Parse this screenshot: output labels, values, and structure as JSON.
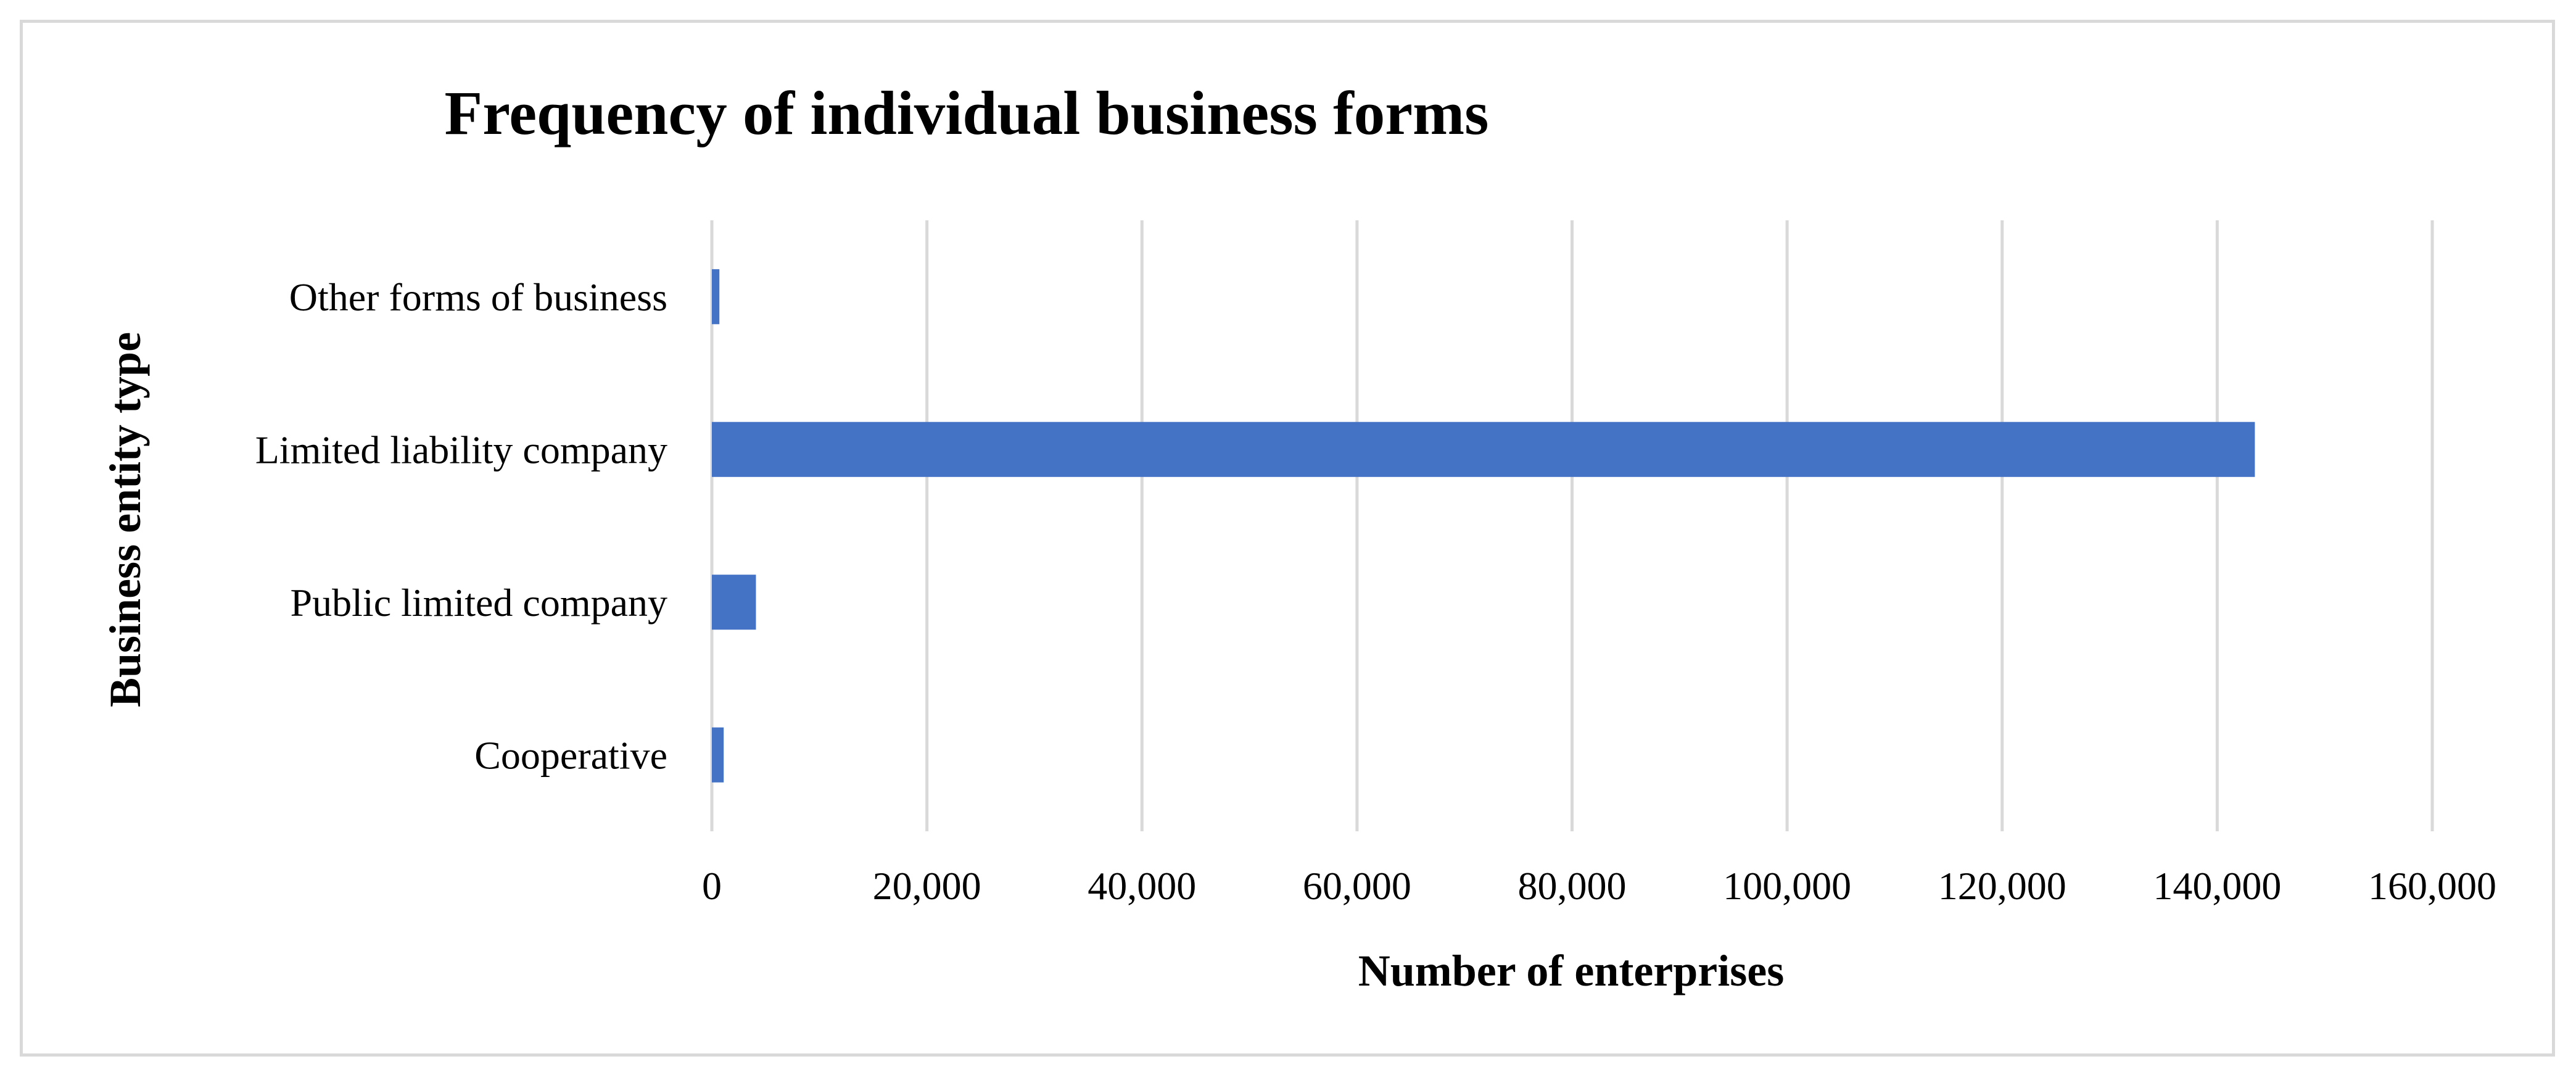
{
  "chart_data": {
    "type": "bar",
    "orientation": "horizontal",
    "title": "Frequency of individual business forms",
    "xlabel": "Number of enterprises",
    "ylabel": "Business entity type",
    "categories": [
      "Other forms of business",
      "Limited liability company",
      "Public limited company",
      "Cooperative"
    ],
    "values": [
      700,
      143500,
      4100,
      1100
    ],
    "xlim": [
      0,
      160000
    ],
    "xticks": [
      0,
      20000,
      40000,
      60000,
      80000,
      100000,
      120000,
      140000,
      160000
    ],
    "xtick_labels": [
      "0",
      "20,000",
      "40,000",
      "60,000",
      "80,000",
      "100,000",
      "120,000",
      "140,000",
      "160,000"
    ],
    "grid": "vertical",
    "legend": "none",
    "bar_color": "#4472c4",
    "grid_color": "#d9d9d9"
  }
}
